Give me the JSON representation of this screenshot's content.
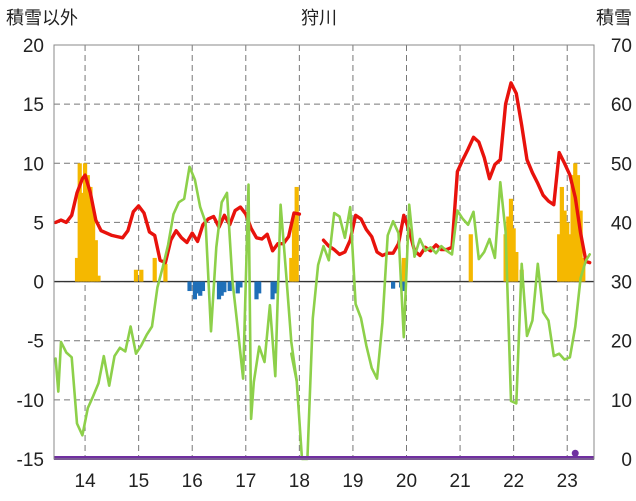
{
  "chart_data": {
    "type": "line",
    "title": "狩川",
    "left_axis_label": "積雪以外",
    "right_axis_label": "積雪",
    "x_ticks": [
      "14",
      "15",
      "16",
      "17",
      "18",
      "19",
      "20",
      "21",
      "22",
      "23"
    ],
    "left_ylim": [
      -15,
      20
    ],
    "left_yticks": [
      "20",
      "15",
      "10",
      "5",
      "0",
      "-5",
      "-10",
      "-15"
    ],
    "right_ylim": [
      0,
      70
    ],
    "right_yticks": [
      "70",
      "60",
      "50",
      "40",
      "30",
      "20",
      "10",
      "0"
    ],
    "grid": true,
    "colors": {
      "temperature": "#e8120c",
      "green_line": "#8dd04a",
      "snow_bars": "#f5b800",
      "negative_bars": "#1f6fb8",
      "baseline": "#7030a0"
    },
    "series": [
      {
        "color_key": "temperature",
        "points": [
          [
            13.45,
            5.0
          ],
          [
            13.55,
            5.2
          ],
          [
            13.65,
            5.0
          ],
          [
            13.75,
            5.6
          ],
          [
            13.85,
            7.5
          ],
          [
            13.95,
            8.7
          ],
          [
            14.0,
            9.0
          ],
          [
            14.1,
            7.5
          ],
          [
            14.2,
            5.2
          ],
          [
            14.3,
            4.3
          ],
          [
            14.4,
            4.1
          ],
          [
            14.5,
            3.9
          ],
          [
            14.6,
            3.8
          ],
          [
            14.7,
            3.7
          ],
          [
            14.8,
            4.3
          ],
          [
            14.9,
            5.9
          ],
          [
            15.0,
            6.4
          ],
          [
            15.1,
            5.8
          ],
          [
            15.2,
            4.2
          ],
          [
            15.3,
            3.9
          ],
          [
            15.4,
            1.8
          ],
          [
            15.5,
            1.6
          ],
          [
            15.6,
            3.5
          ],
          [
            15.7,
            4.3
          ],
          [
            15.8,
            3.7
          ],
          [
            15.9,
            3.3
          ],
          [
            16.0,
            4.1
          ],
          [
            16.1,
            3.4
          ],
          [
            16.2,
            4.8
          ],
          [
            16.3,
            5.3
          ],
          [
            16.4,
            5.5
          ],
          [
            16.5,
            4.6
          ],
          [
            16.6,
            5.6
          ],
          [
            16.7,
            4.8
          ],
          [
            16.8,
            6.0
          ],
          [
            16.9,
            6.3
          ],
          [
            17.0,
            5.7
          ],
          [
            17.1,
            4.5
          ],
          [
            17.2,
            3.7
          ],
          [
            17.3,
            3.6
          ],
          [
            17.4,
            4.0
          ],
          [
            17.5,
            2.6
          ],
          [
            17.6,
            3.2
          ],
          [
            17.7,
            3.2
          ],
          [
            17.8,
            3.8
          ],
          [
            17.9,
            5.8
          ],
          [
            18.0,
            5.7
          ]
        ]
      },
      {
        "color_key": "temperature",
        "points": [
          [
            18.45,
            3.5
          ],
          [
            18.55,
            3.0
          ],
          [
            18.65,
            2.7
          ],
          [
            18.75,
            2.3
          ],
          [
            18.85,
            2.5
          ],
          [
            18.95,
            3.5
          ],
          [
            19.05,
            5.6
          ],
          [
            19.15,
            5.3
          ],
          [
            19.25,
            4.4
          ],
          [
            19.35,
            3.8
          ],
          [
            19.45,
            2.5
          ],
          [
            19.55,
            2.2
          ],
          [
            19.65,
            2.4
          ],
          [
            19.75,
            2.4
          ],
          [
            19.85,
            3.2
          ],
          [
            19.95,
            5.6
          ],
          [
            20.05,
            4.3
          ],
          [
            20.15,
            2.6
          ],
          [
            20.25,
            2.2
          ],
          [
            20.35,
            2.9
          ],
          [
            20.45,
            2.6
          ],
          [
            20.55,
            3.1
          ],
          [
            20.65,
            2.7
          ],
          [
            20.75,
            2.7
          ],
          [
            20.85,
            2.9
          ],
          [
            20.95,
            9.3
          ],
          [
            21.05,
            10.3
          ],
          [
            21.15,
            11.2
          ],
          [
            21.25,
            12.2
          ],
          [
            21.35,
            11.8
          ],
          [
            21.45,
            10.5
          ],
          [
            21.55,
            8.7
          ],
          [
            21.65,
            9.9
          ],
          [
            21.75,
            10.3
          ],
          [
            21.85,
            15.0
          ],
          [
            21.95,
            16.8
          ],
          [
            22.05,
            15.9
          ],
          [
            22.15,
            13.2
          ],
          [
            22.25,
            10.3
          ],
          [
            22.35,
            9.2
          ],
          [
            22.45,
            8.3
          ],
          [
            22.55,
            7.3
          ],
          [
            22.65,
            6.8
          ],
          [
            22.75,
            6.5
          ],
          [
            22.85,
            10.9
          ],
          [
            22.95,
            10.0
          ],
          [
            23.05,
            9.0
          ],
          [
            23.15,
            7.1
          ],
          [
            23.25,
            4.1
          ],
          [
            23.35,
            1.7
          ],
          [
            23.42,
            1.6
          ]
        ]
      },
      {
        "color_key": "green_line",
        "points": [
          [
            13.45,
            -6.5
          ],
          [
            13.5,
            -9.3
          ],
          [
            13.55,
            -5.1
          ],
          [
            13.65,
            -6.0
          ],
          [
            13.75,
            -6.4
          ],
          [
            13.85,
            -12.0
          ],
          [
            13.95,
            -13.0
          ],
          [
            14.05,
            -10.7
          ],
          [
            14.15,
            -9.7
          ],
          [
            14.25,
            -8.6
          ],
          [
            14.35,
            -6.3
          ],
          [
            14.45,
            -8.8
          ],
          [
            14.55,
            -6.3
          ],
          [
            14.65,
            -5.6
          ],
          [
            14.75,
            -5.9
          ],
          [
            14.85,
            -3.8
          ],
          [
            14.95,
            -6.1
          ],
          [
            15.05,
            -5.4
          ],
          [
            15.15,
            -4.5
          ],
          [
            15.25,
            -3.8
          ],
          [
            15.35,
            -0.5
          ],
          [
            15.45,
            1.2
          ],
          [
            15.55,
            3.1
          ],
          [
            15.65,
            5.7
          ],
          [
            15.75,
            6.7
          ],
          [
            15.85,
            7.0
          ],
          [
            15.95,
            9.7
          ],
          [
            16.05,
            8.6
          ],
          [
            16.15,
            6.3
          ],
          [
            16.25,
            5.0
          ],
          [
            16.35,
            -4.2
          ],
          [
            16.45,
            2.9
          ],
          [
            16.55,
            6.7
          ],
          [
            16.65,
            7.5
          ],
          [
            16.75,
            0.1
          ],
          [
            16.85,
            -4.0
          ],
          [
            16.95,
            -8.2
          ],
          [
            17.05,
            8.2
          ],
          [
            17.1,
            -11.6
          ],
          [
            17.15,
            -8.5
          ],
          [
            17.25,
            -5.5
          ],
          [
            17.35,
            -6.8
          ],
          [
            17.45,
            -2.0
          ],
          [
            17.55,
            -8.0
          ],
          [
            17.65,
            6.5
          ],
          [
            17.75,
            0.8
          ],
          [
            17.85,
            -5.1
          ],
          [
            17.95,
            -8.4
          ],
          [
            18.05,
            -15.0
          ],
          [
            18.15,
            -15.0
          ],
          [
            18.25,
            -3.1
          ],
          [
            18.35,
            1.4
          ],
          [
            18.45,
            3.0
          ],
          [
            18.55,
            1.8
          ],
          [
            18.65,
            5.8
          ],
          [
            18.75,
            5.5
          ],
          [
            18.85,
            3.7
          ],
          [
            18.95,
            6.3
          ],
          [
            19.05,
            -1.9
          ],
          [
            19.15,
            -3.1
          ],
          [
            19.25,
            -5.4
          ],
          [
            19.35,
            -7.3
          ],
          [
            19.45,
            -8.2
          ],
          [
            19.55,
            -3.5
          ],
          [
            19.65,
            3.9
          ],
          [
            19.75,
            5.1
          ],
          [
            19.85,
            4.1
          ],
          [
            19.95,
            -4.7
          ],
          [
            20.05,
            6.5
          ],
          [
            20.15,
            2.1
          ],
          [
            20.25,
            3.6
          ],
          [
            20.35,
            2.6
          ],
          [
            20.45,
            2.9
          ],
          [
            20.55,
            2.4
          ],
          [
            20.65,
            3.0
          ],
          [
            20.75,
            2.6
          ],
          [
            20.85,
            2.3
          ],
          [
            20.95,
            6.0
          ],
          [
            21.05,
            5.3
          ],
          [
            21.15,
            4.8
          ],
          [
            21.25,
            5.9
          ],
          [
            21.35,
            1.9
          ],
          [
            21.45,
            2.5
          ],
          [
            21.55,
            3.6
          ],
          [
            21.65,
            2.0
          ],
          [
            21.75,
            8.4
          ],
          [
            21.85,
            4.2
          ],
          [
            21.95,
            -10.1
          ],
          [
            22.05,
            -10.3
          ],
          [
            22.15,
            1.5
          ],
          [
            22.25,
            -4.6
          ],
          [
            22.35,
            -3.3
          ],
          [
            22.45,
            1.5
          ],
          [
            22.55,
            -2.6
          ],
          [
            22.65,
            -3.3
          ],
          [
            22.75,
            -6.3
          ],
          [
            22.85,
            -6.1
          ],
          [
            22.95,
            -6.6
          ],
          [
            23.05,
            -6.4
          ],
          [
            23.15,
            -3.8
          ],
          [
            23.25,
            0.3
          ],
          [
            23.35,
            1.8
          ],
          [
            23.42,
            2.3
          ]
        ]
      },
      {
        "color_key": "green_line",
        "points": [
          [
            17.85,
            -6.1
          ],
          [
            17.95,
            -8.4
          ]
        ]
      }
    ],
    "positive_bars_right_axis": [
      [
        13.85,
        34
      ],
      [
        13.9,
        50
      ],
      [
        13.95,
        45
      ],
      [
        14.0,
        50
      ],
      [
        14.05,
        48
      ],
      [
        14.1,
        46
      ],
      [
        14.15,
        42
      ],
      [
        14.2,
        37
      ],
      [
        14.25,
        31
      ],
      [
        14.95,
        32
      ],
      [
        15.05,
        32
      ],
      [
        15.3,
        34
      ],
      [
        15.5,
        33
      ],
      [
        17.85,
        34
      ],
      [
        17.9,
        41
      ],
      [
        17.95,
        46
      ],
      [
        19.95,
        34
      ],
      [
        21.2,
        38
      ],
      [
        21.85,
        38
      ],
      [
        21.9,
        41
      ],
      [
        21.95,
        44
      ],
      [
        22.0,
        39
      ],
      [
        22.05,
        35
      ],
      [
        22.15,
        32
      ],
      [
        22.85,
        38
      ],
      [
        22.9,
        46
      ],
      [
        22.95,
        42
      ],
      [
        23.0,
        40
      ],
      [
        23.05,
        38
      ],
      [
        23.1,
        48
      ],
      [
        23.15,
        50
      ],
      [
        23.2,
        48
      ],
      [
        23.25,
        42
      ],
      [
        23.3,
        34
      ]
    ],
    "negative_bars_left_axis": [
      [
        15.95,
        -0.8
      ],
      [
        16.05,
        -1.5
      ],
      [
        16.1,
        -1.0
      ],
      [
        16.15,
        -1.2
      ],
      [
        16.2,
        -0.8
      ],
      [
        16.5,
        -1.5
      ],
      [
        16.55,
        -1.2
      ],
      [
        16.6,
        -0.9
      ],
      [
        16.7,
        -0.8
      ],
      [
        16.85,
        -1.0
      ],
      [
        16.9,
        -0.5
      ],
      [
        17.2,
        -1.5
      ],
      [
        17.25,
        -1.0
      ],
      [
        17.5,
        -1.5
      ],
      [
        17.55,
        -1.0
      ],
      [
        19.75,
        -0.6
      ],
      [
        19.9,
        -0.5
      ],
      [
        19.95,
        -0.8
      ]
    ],
    "baseline_marker": [
      [
        23.15,
        -14.6
      ]
    ]
  }
}
